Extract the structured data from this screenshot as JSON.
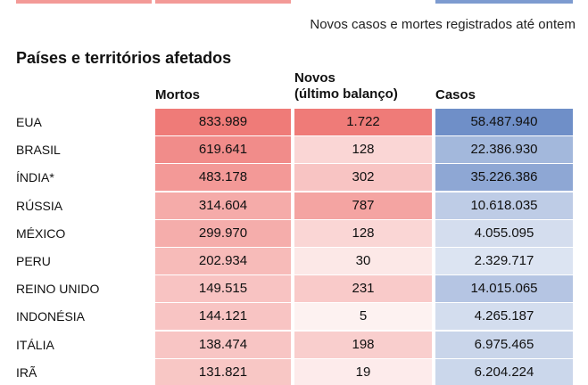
{
  "note": "Novos casos e mortes registrados até ontem",
  "section_title": "Países e territórios afetados",
  "colors": {
    "mortos_max": "#ef7b78",
    "casos_max": "#6f8fc8"
  },
  "chart_data": {
    "type": "table",
    "title": "",
    "columns": [
      {
        "key": "mortos",
        "label": [
          "Mortos"
        ]
      },
      {
        "key": "novos",
        "label": [
          "Novos",
          "(último balanço)"
        ]
      },
      {
        "key": "casos",
        "label": [
          "Casos"
        ]
      }
    ],
    "rows": [
      {
        "country": "EUA",
        "mortos": 833989,
        "novos": 1722,
        "casos": 58487940,
        "mortos_text": "833.989",
        "novos_text": "1.722",
        "casos_text": "58.487.940"
      },
      {
        "country": "BRASIL",
        "mortos": 619641,
        "novos": 128,
        "casos": 22386930,
        "mortos_text": "619.641",
        "novos_text": "128",
        "casos_text": "22.386.930"
      },
      {
        "country": "ÍNDIA*",
        "mortos": 483178,
        "novos": 302,
        "casos": 35226386,
        "mortos_text": "483.178",
        "novos_text": "302",
        "casos_text": "35.226.386"
      },
      {
        "country": "RÚSSIA",
        "mortos": 314604,
        "novos": 787,
        "casos": 10618035,
        "mortos_text": "314.604",
        "novos_text": "787",
        "casos_text": "10.618.035"
      },
      {
        "country": "MÉXICO",
        "mortos": 299970,
        "novos": 128,
        "casos": 4055095,
        "mortos_text": "299.970",
        "novos_text": "128",
        "casos_text": "4.055.095"
      },
      {
        "country": "PERU",
        "mortos": 202934,
        "novos": 30,
        "casos": 2329717,
        "mortos_text": "202.934",
        "novos_text": "30",
        "casos_text": "2.329.717"
      },
      {
        "country": "REINO UNIDO",
        "mortos": 149515,
        "novos": 231,
        "casos": 14015065,
        "mortos_text": "149.515",
        "novos_text": "231",
        "casos_text": "14.015.065"
      },
      {
        "country": "INDONÉSIA",
        "mortos": 144121,
        "novos": 5,
        "casos": 4265187,
        "mortos_text": "144.121",
        "novos_text": "5",
        "casos_text": "4.265.187"
      },
      {
        "country": "ITÁLIA",
        "mortos": 138474,
        "novos": 198,
        "casos": 6975465,
        "mortos_text": "138.474",
        "novos_text": "198",
        "casos_text": "6.975.465"
      },
      {
        "country": "IRÃ",
        "mortos": 131821,
        "novos": 19,
        "casos": 6204224,
        "mortos_text": "131.821",
        "novos_text": "19",
        "casos_text": "6.204.224"
      }
    ]
  }
}
